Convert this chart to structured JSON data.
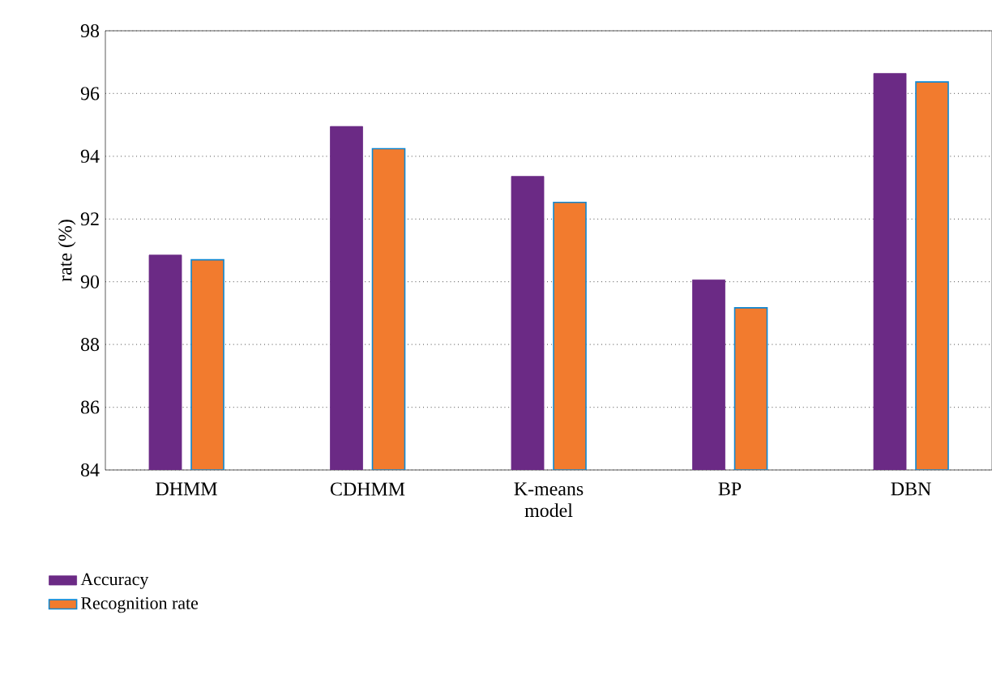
{
  "chart_data": {
    "type": "bar",
    "xlabel": "model",
    "ylabel": "rate (%)",
    "categories": [
      "DHMM",
      "CDHMM",
      "K-means",
      "BP",
      "DBN"
    ],
    "series": [
      {
        "name": "Accuracy",
        "color": "#6b2a85",
        "values": [
          90.85,
          94.95,
          93.36,
          90.06,
          96.64
        ]
      },
      {
        "name": "Recognition rate",
        "color": "#f27b2e",
        "values": [
          90.7,
          94.24,
          92.53,
          89.17,
          96.37
        ]
      }
    ],
    "ylim": [
      84,
      98
    ],
    "yticks": [
      84,
      86,
      88,
      90,
      92,
      94,
      96,
      98
    ],
    "grid": "y",
    "legend": "bottom left"
  }
}
